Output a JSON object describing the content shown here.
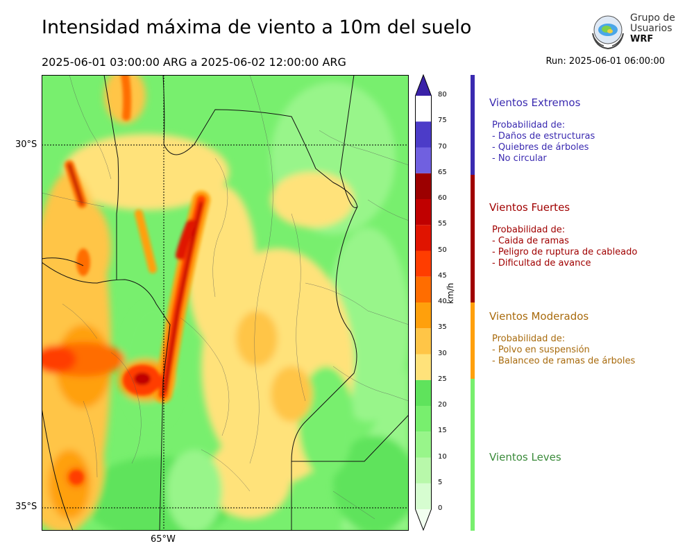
{
  "header": {
    "title": "Intensidad máxima de viento a 10m del suelo",
    "period": "2025-06-01 03:00:00 ARG  a  2025-06-02 12:00:00 ARG",
    "run": "Run: 2025-06-01 06:00:00"
  },
  "logo": {
    "line1": "Grupo de",
    "line2": "Usuarios",
    "line3": "WRF"
  },
  "map": {
    "lat_labels": [
      "30°S",
      "35°S"
    ],
    "lon_labels": [
      "65°W"
    ]
  },
  "colorbar": {
    "unit": "km/h",
    "ticks": [
      "0",
      "5",
      "10",
      "15",
      "20",
      "25",
      "30",
      "35",
      "40",
      "45",
      "50",
      "55",
      "60",
      "65",
      "70",
      "75",
      "80"
    ],
    "colors": [
      "#f2fff0",
      "#d6fdd0",
      "#b8f8aa",
      "#98f58a",
      "#78ef6e",
      "#5fe35c",
      "#ffe27a",
      "#ffc547",
      "#ffa00c",
      "#ff6d00",
      "#ff3d00",
      "#e01400",
      "#c00000",
      "#9c0000",
      "#7060e0",
      "#4c3cc8",
      "#3a22a8"
    ]
  },
  "categories": [
    {
      "name": "Vientos Extremos",
      "color": "#3a2ab0",
      "prob": "Probabilidad de:",
      "items": [
        "- Daños de estructuras",
        "- Quiebres de árboles",
        "- No circular"
      ]
    },
    {
      "name": "Vientos Fuertes",
      "color": "#a00000",
      "prob": "Probabilidad de:",
      "items": [
        "- Caida de ramas",
        "- Peligro de ruptura de cableado",
        "- Dificultad de avance"
      ]
    },
    {
      "name": "Vientos Moderados",
      "color": "#a86a0c",
      "prob": "Probabilidad de:",
      "items": [
        "- Polvo en suspensión",
        "- Balanceo de ramas de árboles"
      ]
    },
    {
      "name": "Vientos Leves",
      "color": "#3a8a3a",
      "prob": "",
      "items": []
    }
  ]
}
